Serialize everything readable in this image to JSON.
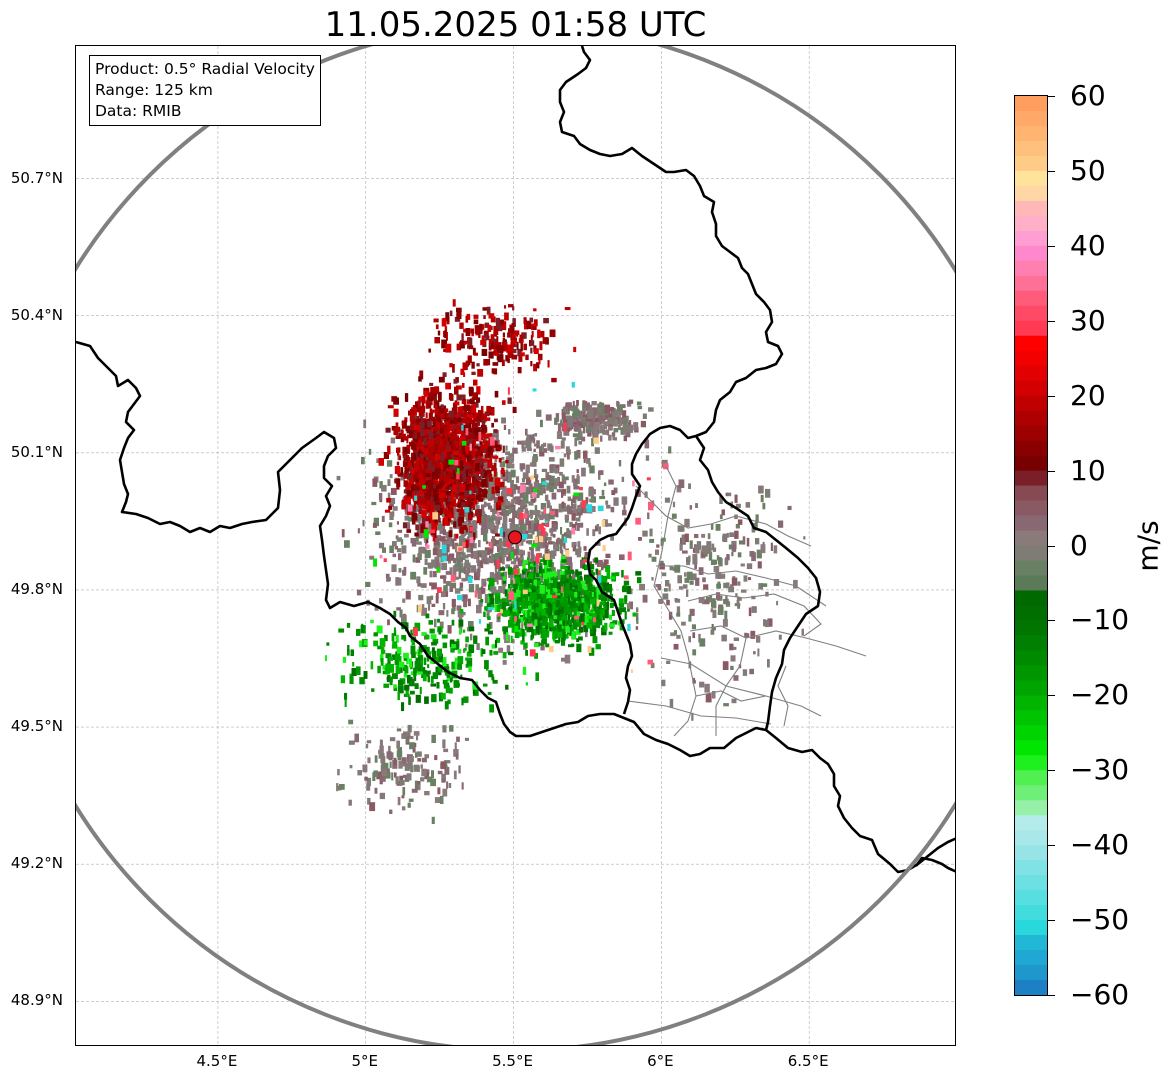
{
  "title": "11.05.2025 01:58 UTC",
  "info_box": {
    "product": "Product: 0.5° Radial Velocity",
    "range": "Range: 125 km",
    "data": "Data: RMIB"
  },
  "map": {
    "lon_range": [
      4.02,
      7.0
    ],
    "lat_range": [
      48.8,
      50.99
    ],
    "radar_site": {
      "lon": 5.505,
      "lat": 49.915,
      "color": "#e8141e"
    },
    "range_ring_km": 125,
    "lat_ticks": [
      {
        "value": 50.7,
        "label": "50.7°N"
      },
      {
        "value": 50.4,
        "label": "50.4°N"
      },
      {
        "value": 50.1,
        "label": "50.1°N"
      },
      {
        "value": 49.8,
        "label": "49.8°N"
      },
      {
        "value": 49.5,
        "label": "49.5°N"
      },
      {
        "value": 49.2,
        "label": "49.2°N"
      },
      {
        "value": 48.9,
        "label": "48.9°N"
      }
    ],
    "lon_ticks": [
      {
        "value": 4.5,
        "label": "4.5°E"
      },
      {
        "value": 5.0,
        "label": "5°E"
      },
      {
        "value": 5.5,
        "label": "5.5°E"
      },
      {
        "value": 6.0,
        "label": "6°E"
      },
      {
        "value": 6.5,
        "label": "6.5°E"
      }
    ],
    "gridlines": true,
    "border_color": "#000000",
    "ring_color": "#808080",
    "subregion_color": "#808080"
  },
  "colorbar": {
    "unit": "m/s",
    "min": -60,
    "max": 60,
    "ticks": [
      {
        "value": 60,
        "label": "60"
      },
      {
        "value": 50,
        "label": "50"
      },
      {
        "value": 40,
        "label": "40"
      },
      {
        "value": 30,
        "label": "30"
      },
      {
        "value": 20,
        "label": "20"
      },
      {
        "value": 10,
        "label": "10"
      },
      {
        "value": 0,
        "label": "0"
      },
      {
        "value": -10,
        "label": "−10"
      },
      {
        "value": -20,
        "label": "−20"
      },
      {
        "value": -30,
        "label": "−30"
      },
      {
        "value": -40,
        "label": "−40"
      },
      {
        "value": -50,
        "label": "−50"
      },
      {
        "value": -60,
        "label": "−60"
      }
    ],
    "bands": [
      {
        "from": 58,
        "to": 60,
        "color": "#ff9e5e"
      },
      {
        "from": 56,
        "to": 58,
        "color": "#ffa868"
      },
      {
        "from": 54,
        "to": 56,
        "color": "#ffb472"
      },
      {
        "from": 52,
        "to": 54,
        "color": "#ffc07e"
      },
      {
        "from": 50,
        "to": 52,
        "color": "#ffcc88"
      },
      {
        "from": 48,
        "to": 50,
        "color": "#ffe39c"
      },
      {
        "from": 46,
        "to": 48,
        "color": "#ffd7a6"
      },
      {
        "from": 44,
        "to": 46,
        "color": "#ffb8b8"
      },
      {
        "from": 42,
        "to": 44,
        "color": "#ffb0c8"
      },
      {
        "from": 40,
        "to": 42,
        "color": "#ff9ed2"
      },
      {
        "from": 38,
        "to": 40,
        "color": "#ff88cc"
      },
      {
        "from": 36,
        "to": 38,
        "color": "#ff80b0"
      },
      {
        "from": 34,
        "to": 36,
        "color": "#ff7096"
      },
      {
        "from": 32,
        "to": 34,
        "color": "#ff5c7c"
      },
      {
        "from": 30,
        "to": 32,
        "color": "#ff4a66"
      },
      {
        "from": 28,
        "to": 30,
        "color": "#ff3a52"
      },
      {
        "from": 26,
        "to": 28,
        "color": "#ff0000"
      },
      {
        "from": 24,
        "to": 26,
        "color": "#f20000"
      },
      {
        "from": 22,
        "to": 24,
        "color": "#e20000"
      },
      {
        "from": 20,
        "to": 22,
        "color": "#d20000"
      },
      {
        "from": 18,
        "to": 20,
        "color": "#c00000"
      },
      {
        "from": 16,
        "to": 18,
        "color": "#ae0000"
      },
      {
        "from": 14,
        "to": 16,
        "color": "#9c0000"
      },
      {
        "from": 12,
        "to": 14,
        "color": "#8a0000"
      },
      {
        "from": 10,
        "to": 12,
        "color": "#780000"
      },
      {
        "from": 8,
        "to": 10,
        "color": "#7a1e28"
      },
      {
        "from": 6,
        "to": 8,
        "color": "#884a52"
      },
      {
        "from": 4,
        "to": 6,
        "color": "#8a5a64"
      },
      {
        "from": 2,
        "to": 4,
        "color": "#886872"
      },
      {
        "from": 0,
        "to": 2,
        "color": "#8a7a7a"
      },
      {
        "from": -2,
        "to": 0,
        "color": "#7e7c74"
      },
      {
        "from": -4,
        "to": -2,
        "color": "#6a8064"
      },
      {
        "from": -6,
        "to": -4,
        "color": "#5a7a58"
      },
      {
        "from": -8,
        "to": -6,
        "color": "#006a00"
      },
      {
        "from": -10,
        "to": -8,
        "color": "#006e00"
      },
      {
        "from": -12,
        "to": -10,
        "color": "#007600"
      },
      {
        "from": -14,
        "to": -12,
        "color": "#008000"
      },
      {
        "from": -16,
        "to": -14,
        "color": "#008a00"
      },
      {
        "from": -18,
        "to": -16,
        "color": "#009600"
      },
      {
        "from": -20,
        "to": -18,
        "color": "#00a400"
      },
      {
        "from": -22,
        "to": -20,
        "color": "#00b400"
      },
      {
        "from": -24,
        "to": -22,
        "color": "#00c400"
      },
      {
        "from": -26,
        "to": -24,
        "color": "#00d400"
      },
      {
        "from": -28,
        "to": -26,
        "color": "#00e600"
      },
      {
        "from": -30,
        "to": -28,
        "color": "#1ef01e"
      },
      {
        "from": -32,
        "to": -30,
        "color": "#50f050"
      },
      {
        "from": -34,
        "to": -32,
        "color": "#6ef078"
      },
      {
        "from": -36,
        "to": -34,
        "color": "#96f0a8"
      },
      {
        "from": -38,
        "to": -36,
        "color": "#b4ecec"
      },
      {
        "from": -40,
        "to": -38,
        "color": "#a8e8ea"
      },
      {
        "from": -42,
        "to": -40,
        "color": "#96e4e6"
      },
      {
        "from": -44,
        "to": -42,
        "color": "#80e2e4"
      },
      {
        "from": -46,
        "to": -44,
        "color": "#6ce0e2"
      },
      {
        "from": -48,
        "to": -46,
        "color": "#56dee0"
      },
      {
        "from": -50,
        "to": -48,
        "color": "#40dcde"
      },
      {
        "from": -52,
        "to": -50,
        "color": "#28d8dc"
      },
      {
        "from": -54,
        "to": -52,
        "color": "#20b8d4"
      },
      {
        "from": -56,
        "to": -54,
        "color": "#1ea8d2"
      },
      {
        "from": -58,
        "to": -56,
        "color": "#1e98cc"
      },
      {
        "from": -60,
        "to": -58,
        "color": "#1e80c4"
      }
    ]
  }
}
